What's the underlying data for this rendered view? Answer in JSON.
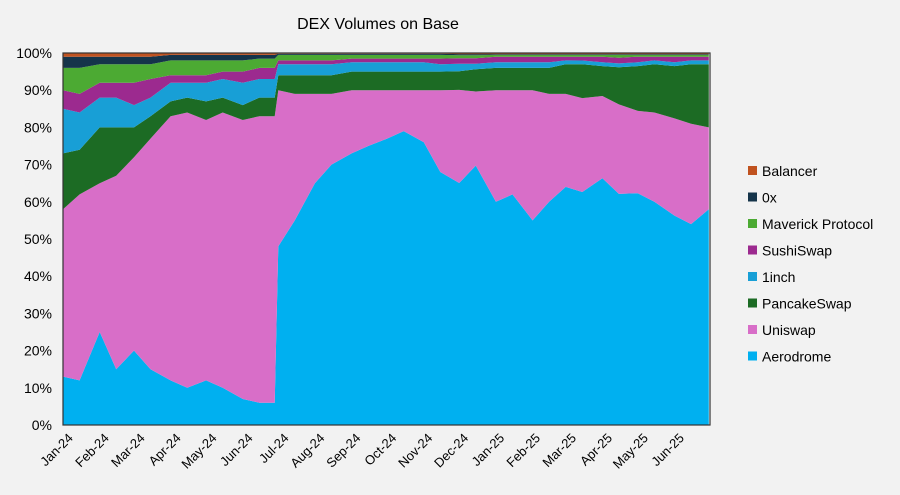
{
  "chart_data": {
    "type": "area",
    "stacked": "percent",
    "title": "DEX Volumes on Base",
    "xlabel": "",
    "ylabel": "",
    "ylim": [
      0,
      100
    ],
    "y_ticks": [
      "0%",
      "10%",
      "20%",
      "30%",
      "40%",
      "50%",
      "60%",
      "70%",
      "80%",
      "90%",
      "100%"
    ],
    "x_ticks": [
      "Jan-24",
      "Feb-24",
      "Mar-24",
      "Apr-24",
      "May-24",
      "Jun-24",
      "Jul-24",
      "Aug-24",
      "Sep-24",
      "Oct-24",
      "Nov-24",
      "Dec-24",
      "Jan-25",
      "Feb-25",
      "Mar-25",
      "Apr-25",
      "May-25",
      "Jun-25"
    ],
    "grid": false,
    "legend_placement": "right",
    "x": [
      "2024-01-01",
      "2024-01-15",
      "2024-02-01",
      "2024-02-15",
      "2024-03-01",
      "2024-03-15",
      "2024-04-01",
      "2024-04-15",
      "2024-05-01",
      "2024-05-15",
      "2024-06-01",
      "2024-06-15",
      "2024-06-28",
      "2024-07-01",
      "2024-07-15",
      "2024-08-01",
      "2024-08-15",
      "2024-09-01",
      "2024-09-15",
      "2024-10-01",
      "2024-10-15",
      "2024-11-01",
      "2024-11-15",
      "2024-12-01",
      "2024-12-15",
      "2025-01-01",
      "2025-01-15",
      "2025-02-01",
      "2025-02-15",
      "2025-03-01",
      "2025-03-15",
      "2025-04-01",
      "2025-04-15",
      "2025-05-01",
      "2025-05-15",
      "2025-06-01",
      "2025-06-15",
      "2025-06-30"
    ],
    "series": [
      {
        "name": "Aerodrome",
        "color": "#00b0f0",
        "values": [
          13,
          12,
          25,
          15,
          20,
          15,
          12,
          10,
          12,
          10,
          7,
          6,
          6,
          48,
          55,
          65,
          70,
          73,
          75,
          77,
          79,
          76,
          68,
          65,
          70,
          60,
          62,
          55,
          60,
          64,
          62,
          66,
          62,
          62,
          60,
          56,
          54,
          58
        ]
      },
      {
        "name": "Uniswap",
        "color": "#d86ec8",
        "values": [
          45,
          50,
          40,
          52,
          52,
          62,
          71,
          74,
          70,
          74,
          75,
          77,
          77,
          42,
          34,
          24,
          19,
          17,
          15,
          13,
          11,
          14,
          22,
          25,
          20,
          30,
          28,
          35,
          29,
          25,
          25,
          22,
          24,
          22,
          24,
          26,
          27,
          22
        ]
      },
      {
        "name": "PancakeSwap",
        "color": "#1c6b24",
        "values": [
          15,
          12,
          15,
          13,
          8,
          6,
          4,
          4,
          5,
          4,
          4,
          5,
          5,
          4,
          5,
          5,
          5,
          5,
          5,
          5,
          5,
          5,
          5,
          5,
          6,
          6,
          6,
          6,
          7,
          8,
          9,
          8,
          10,
          12,
          13,
          14,
          16,
          17
        ]
      },
      {
        "name": "1inch",
        "color": "#189fd6",
        "values": [
          12,
          10,
          8,
          8,
          6,
          5,
          5,
          4,
          5,
          5,
          6,
          5,
          5,
          3,
          3,
          3,
          3,
          2.5,
          2.5,
          2.5,
          2.5,
          2.5,
          2,
          2,
          1.5,
          1.5,
          1.5,
          1.5,
          1.5,
          1,
          1,
          1,
          1,
          1,
          1,
          1,
          1,
          1
        ]
      },
      {
        "name": "SushiSwap",
        "color": "#9c2a8f",
        "values": [
          5,
          5,
          4,
          4,
          6,
          5,
          2,
          2,
          2,
          2,
          3,
          3,
          3,
          1,
          1,
          1,
          1,
          1,
          1,
          1,
          1,
          1,
          1.5,
          1.5,
          1.5,
          1.5,
          1.5,
          1.5,
          1.5,
          1,
          1,
          1.5,
          1.5,
          1.5,
          1,
          1.5,
          1,
          1
        ]
      },
      {
        "name": "Maverick Protocol",
        "color": "#4caa33",
        "values": [
          6,
          7,
          5,
          5,
          5,
          4,
          4,
          4,
          4,
          3,
          3,
          2.5,
          2.5,
          1.5,
          1.5,
          1.5,
          1.5,
          1,
          1,
          1,
          1,
          1,
          1,
          0.8,
          0.8,
          0.5,
          0.5,
          0.5,
          0.5,
          0.5,
          0.5,
          0.5,
          0.8,
          0.5,
          0.5,
          0.5,
          0.5,
          0.5
        ]
      },
      {
        "name": "0x",
        "color": "#15344a",
        "values": [
          3,
          3,
          2,
          2,
          2,
          2,
          1.5,
          1.5,
          1.5,
          1.5,
          1.5,
          1,
          1,
          0.3,
          0.3,
          0.3,
          0.3,
          0.3,
          0.3,
          0.3,
          0.3,
          0.3,
          0.3,
          0.3,
          0.3,
          0.2,
          0.2,
          0.2,
          0.2,
          0.2,
          0.2,
          0.2,
          0.2,
          0.2,
          0.2,
          0.2,
          0.2,
          0.2
        ]
      },
      {
        "name": "Balancer",
        "color": "#c0521f",
        "values": [
          1,
          1,
          1,
          1,
          1,
          1,
          0.5,
          0.5,
          0.5,
          0.5,
          0.5,
          0.5,
          0.5,
          0.2,
          0.2,
          0.2,
          0.2,
          0.2,
          0.2,
          0.2,
          0.2,
          0.2,
          0.2,
          0.3,
          0.3,
          0.3,
          0.3,
          0.3,
          0.3,
          0.3,
          0.3,
          0.3,
          0.3,
          0.3,
          0.3,
          0.3,
          0.3,
          0.3
        ]
      }
    ]
  }
}
